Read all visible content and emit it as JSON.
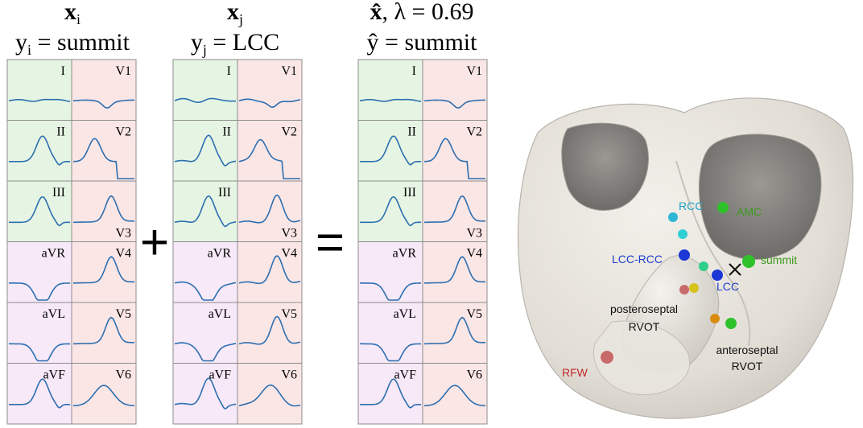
{
  "panels": [
    {
      "id": "xi",
      "title_vec": "x",
      "title_sub": "i",
      "title_extra": "",
      "label_var": "y",
      "label_sub": "i",
      "label_value": " = summit",
      "leads_left": [
        "I",
        "II",
        "III",
        "aVR",
        "aVL",
        "aVF"
      ],
      "leads_right": [
        "V1",
        "V2",
        "V3",
        "V4",
        "V5",
        "V6"
      ]
    },
    {
      "id": "xj",
      "title_vec": "x",
      "title_sub": "j",
      "title_extra": "",
      "label_var": "y",
      "label_sub": "j",
      "label_value": " = LCC",
      "leads_left": [
        "I",
        "II",
        "III",
        "aVR",
        "aVL",
        "aVF"
      ],
      "leads_right": [
        "V1",
        "V2",
        "V3",
        "V4",
        "V5",
        "V6"
      ]
    },
    {
      "id": "xhat",
      "title_vec": "x̂",
      "title_sub": "",
      "title_extra": ", λ = 0.69",
      "label_var": "ŷ",
      "label_sub": "",
      "label_value": " = summit",
      "leads_left": [
        "I",
        "II",
        "III",
        "aVR",
        "aVL",
        "aVF"
      ],
      "leads_right": [
        "V1",
        "V2",
        "V3",
        "V4",
        "V5",
        "V6"
      ]
    }
  ],
  "operators": {
    "plus": "+",
    "equals": "="
  },
  "anatomy_labels": {
    "rcc": "RCC",
    "amc": "AMC",
    "lcc_rcc": "LCC-RCC",
    "summit": "summit",
    "lcc": "LCC",
    "posteroseptal_1": "posteroseptal",
    "posteroseptal_2": "RVOT",
    "anteroseptal_1": "anteroseptal",
    "anteroseptal_2": "RVOT",
    "rfw": "RFW"
  },
  "colors": {
    "limb_bg": "#e6f5e3",
    "precordial_bg": "#fbe6e6",
    "augmented_bg": "#f7e9f8",
    "trace": "#2c6fb0",
    "grid": "#8c8c8c",
    "heart": "#e6e3dc",
    "label_cyan": "#1fa3c9",
    "label_green": "#3c9a1e",
    "label_blue": "#1e3fcf",
    "label_red": "#c0282c",
    "marker_cyan": "#2fb6d4",
    "marker_green": "#2ec12a",
    "marker_blue": "#1b38d6",
    "marker_orange": "#d98b0e",
    "marker_yellow": "#d8c21c",
    "marker_red": "#c96a6a"
  }
}
